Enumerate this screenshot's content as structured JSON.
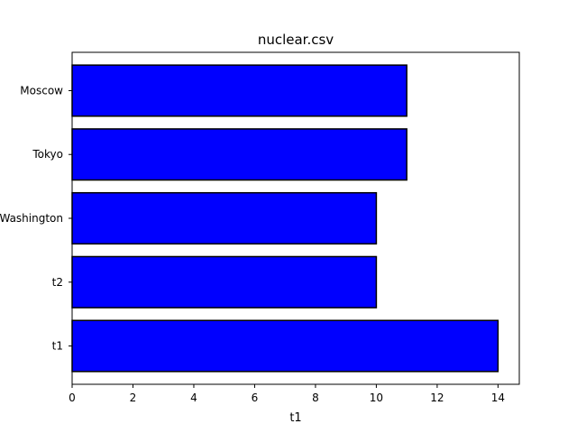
{
  "chart_data": {
    "type": "bar",
    "orientation": "horizontal",
    "title": "nuclear.csv",
    "xlabel": "t1",
    "ylabel": "",
    "categories": [
      "t1",
      "t2",
      "Washington",
      "Tokyo",
      "Moscow"
    ],
    "values": [
      14,
      10,
      10,
      11,
      11
    ],
    "xlim": [
      0,
      14.7
    ],
    "xticks": [
      0,
      2,
      4,
      6,
      8,
      10,
      12,
      14
    ],
    "grid": false,
    "bar_color": "#0000ff",
    "edge_color": "#000000"
  }
}
